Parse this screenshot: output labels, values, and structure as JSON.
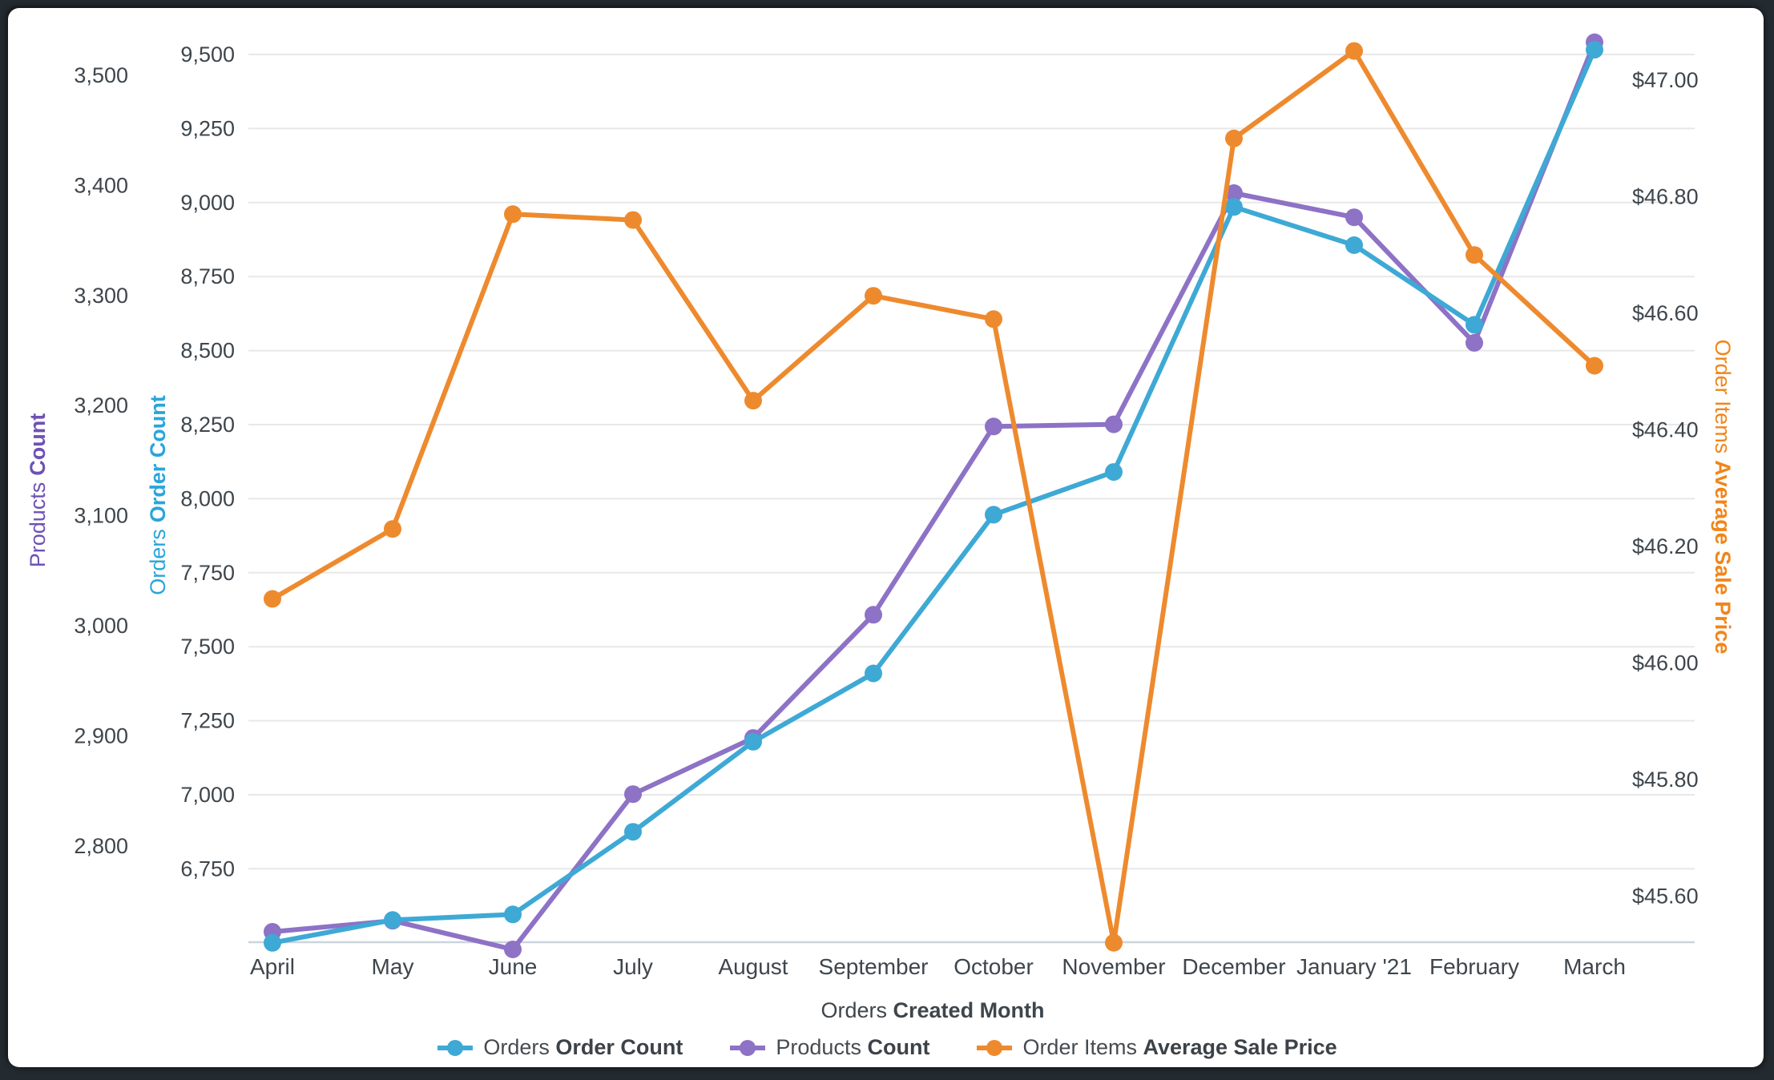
{
  "frame": {
    "background": "#242b30",
    "card_background": "#ffffff"
  },
  "ui_colors": {
    "tick_text": "#3e464c",
    "month_text": "#3e464c",
    "gridline": "#e8e8e8",
    "axis_line": "#cbd5de"
  },
  "chart_data": {
    "type": "line",
    "title": "",
    "legend_position": "bottom",
    "grid": true,
    "x_categories": [
      "April",
      "May",
      "June",
      "July",
      "August",
      "September",
      "October",
      "November",
      "December",
      "January '21",
      "February",
      "March"
    ],
    "x_axis": {
      "title_regular": "Orders",
      "title_bold": "Created Month"
    },
    "series": [
      {
        "id": "orders",
        "name_regular": "Orders",
        "name_bold": "Order Count",
        "color": "#3ea9d5",
        "axis": "orders",
        "values": [
          6500,
          6577,
          6596,
          6875,
          7179,
          7410,
          7946,
          8090,
          8985,
          8856,
          8587,
          9516
        ]
      },
      {
        "id": "products",
        "name_regular": "Products",
        "name_bold": "Count",
        "color": "#8e72c6",
        "axis": "products",
        "values": [
          2722,
          2732,
          2706,
          2847,
          2898,
          3010,
          3181,
          3183,
          3393,
          3371,
          3257,
          3530
        ]
      },
      {
        "id": "price",
        "name_regular": "Order Items",
        "name_bold": "Average Sale Price",
        "color": "#ee8a2e",
        "axis": "price",
        "values": [
          46.11,
          46.23,
          46.77,
          46.76,
          46.45,
          46.63,
          46.59,
          45.52,
          46.9,
          47.05,
          46.7,
          46.51
        ]
      }
    ],
    "axes": {
      "products": {
        "side": "left-outer",
        "color": "#6f51b5",
        "title_regular": "Products",
        "title_bold": "Count",
        "tick_values": [
          3500,
          3400,
          3300,
          3200,
          3100,
          3000,
          2900,
          2800
        ],
        "tick_labels": [
          "3,500",
          "3,400",
          "3,300",
          "3,200",
          "3,100",
          "3,000",
          "2,900",
          "2,800"
        ],
        "range_shown": [
          2800,
          3500
        ]
      },
      "orders": {
        "side": "left-inner",
        "color": "#2aa5db",
        "title_regular": "Orders",
        "title_bold": "Order Count",
        "tick_values": [
          9500,
          9250,
          9000,
          8750,
          8500,
          8250,
          8000,
          7750,
          7500,
          7250,
          7000,
          6750
        ],
        "tick_labels": [
          "9,500",
          "9,250",
          "9,000",
          "8,750",
          "8,500",
          "8,250",
          "8,000",
          "7,750",
          "7,500",
          "7,250",
          "7,000",
          "6,750"
        ],
        "range_shown": [
          6750,
          9500
        ],
        "gridlines": true
      },
      "price": {
        "side": "right",
        "color": "#f0861b",
        "title_regular": "Order Items",
        "title_bold": "Average Sale Price",
        "tick_values": [
          47.0,
          46.8,
          46.6,
          46.4,
          46.2,
          46.0,
          45.8,
          45.6
        ],
        "tick_labels": [
          "$47.00",
          "$46.80",
          "$46.60",
          "$46.40",
          "$46.20",
          "$46.00",
          "$45.80",
          "$45.60"
        ],
        "range_shown": [
          45.6,
          47.0
        ]
      }
    }
  }
}
